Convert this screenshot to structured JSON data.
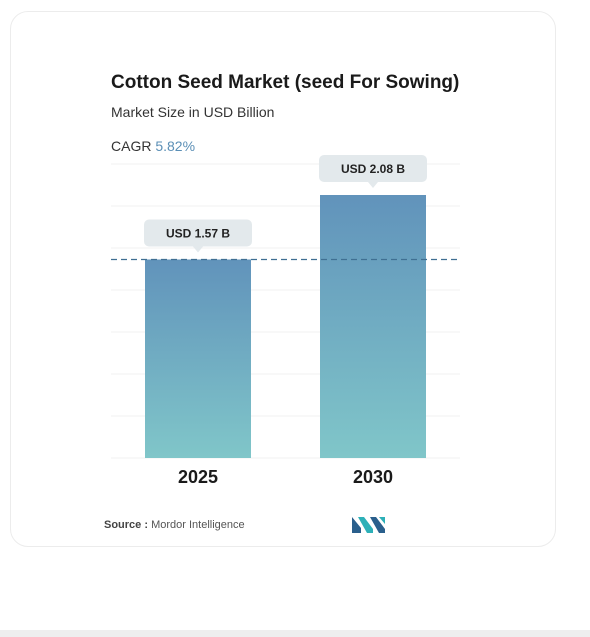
{
  "header": {
    "title": "Cotton Seed Market (seed For Sowing)",
    "subtitle": "Market Size in USD Billion",
    "cagr_label": "CAGR",
    "cagr_value": "5.82%"
  },
  "footer": {
    "source_label": "Source :",
    "source_name": "Mordor Intelligence",
    "logo_icon": "mordor-intelligence-logo-icon"
  },
  "colors": {
    "bar_top": "#6193bb",
    "bar_bottom": "#80c6c9",
    "label_bg": "#e3e9ec",
    "dashed_line": "#3f6f92",
    "grid": "#f0f0f0",
    "logo_teal": "#2db0b8",
    "logo_blue": "#2a5f8c"
  },
  "chart_data": {
    "type": "bar",
    "categories": [
      "2025",
      "2030"
    ],
    "values": [
      1.57,
      2.08
    ],
    "data_labels": [
      "USD 1.57 B",
      "USD 2.08 B"
    ],
    "reference_line": 1.57,
    "grid": true,
    "ylim": [
      0,
      2.3
    ]
  }
}
